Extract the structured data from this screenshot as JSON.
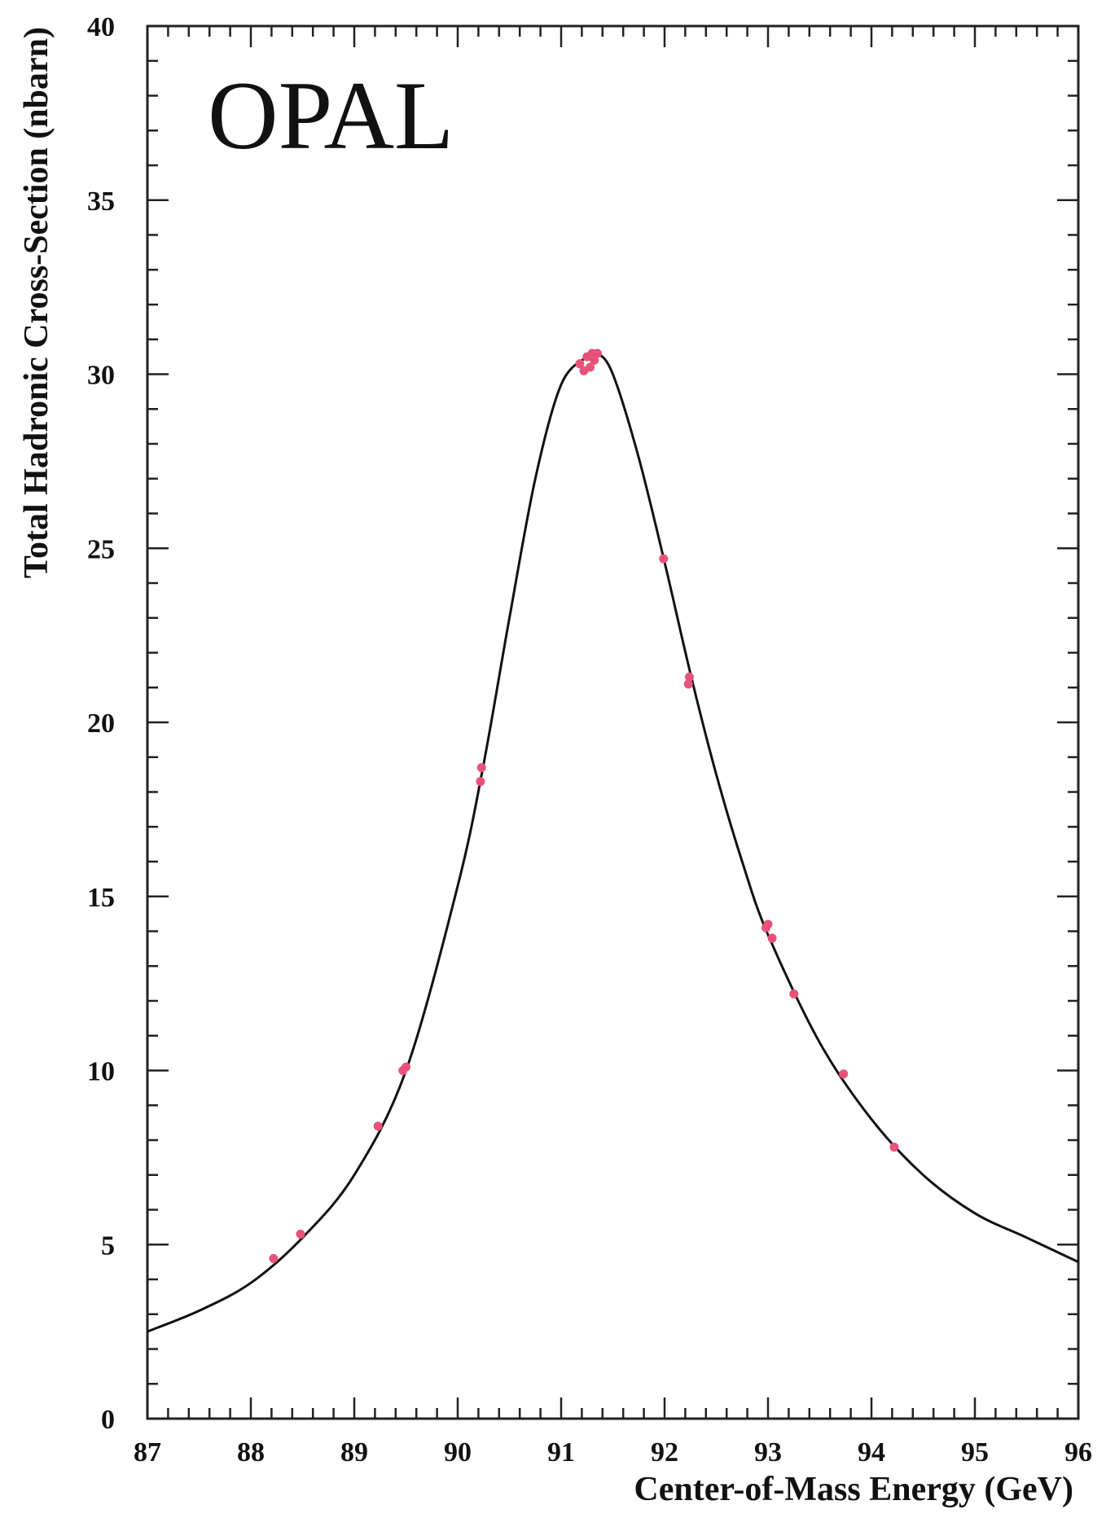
{
  "chart_data": {
    "type": "scatter",
    "title": "OPAL",
    "xlabel": "Center-of-Mass Energy (GeV)",
    "ylabel": "Total Hadronic Cross-Section (nbarn)",
    "xlim": [
      87,
      96
    ],
    "ylim": [
      0,
      40
    ],
    "xticks": [
      "87",
      "88",
      "89",
      "90",
      "91",
      "92",
      "93",
      "94",
      "95",
      "96"
    ],
    "yticks": [
      "0",
      "5",
      "10",
      "15",
      "20",
      "25",
      "30",
      "35",
      "40"
    ],
    "grid": false,
    "legend": "none",
    "series": [
      {
        "kind": "points",
        "color": "#e8527a",
        "x": [
          88.22,
          88.48,
          89.23,
          89.47,
          89.5,
          90.22,
          90.23,
          91.18,
          91.22,
          91.25,
          91.28,
          91.3,
          91.32,
          91.35,
          91.99,
          92.23,
          92.24,
          92.98,
          93.0,
          93.04,
          93.25,
          93.73,
          94.22
        ],
        "y": [
          4.6,
          5.3,
          8.4,
          10.0,
          10.1,
          18.3,
          18.7,
          30.3,
          30.1,
          30.5,
          30.2,
          30.6,
          30.4,
          30.6,
          24.7,
          21.1,
          21.3,
          14.1,
          14.2,
          13.8,
          12.2,
          9.9,
          7.8
        ]
      },
      {
        "kind": "fit-curve",
        "color": "#111111",
        "x": [
          87.0,
          87.5,
          88.0,
          88.5,
          89.0,
          89.5,
          90.0,
          90.25,
          90.5,
          90.75,
          91.0,
          91.25,
          91.35,
          91.5,
          91.75,
          92.0,
          92.25,
          92.5,
          92.75,
          93.0,
          93.5,
          94.0,
          94.5,
          95.0,
          95.5,
          96.0
        ],
        "y": [
          2.5,
          3.1,
          3.9,
          5.2,
          7.0,
          10.0,
          15.3,
          18.8,
          23.0,
          27.0,
          29.7,
          30.5,
          30.6,
          30.0,
          27.6,
          24.6,
          21.4,
          18.5,
          16.0,
          13.9,
          10.8,
          8.6,
          7.0,
          5.9,
          5.2,
          4.5
        ]
      }
    ]
  }
}
